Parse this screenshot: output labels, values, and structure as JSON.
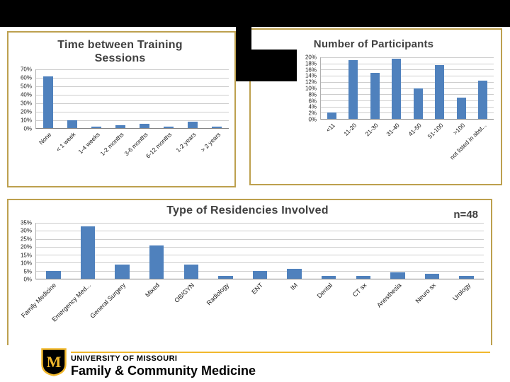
{
  "colors": {
    "bar": "#4f81bd",
    "box_border_gold": "#bda04e",
    "brand_gold": "#f1b82d",
    "header_black": "#000000",
    "title_gray": "#404040"
  },
  "chart_data": [
    {
      "type": "bar",
      "title": "Time between Training Sessions",
      "title_lines": [
        "Time between Training",
        "Sessions"
      ],
      "categories": [
        "None",
        "< 1 week",
        "1-4 weeks",
        "1-2 months",
        "3-6 months",
        "6-12 months",
        "1-2 years",
        "> 2 years"
      ],
      "values": [
        62,
        10,
        2,
        4,
        5,
        2,
        8,
        2
      ],
      "unit": "%",
      "xlabel": "",
      "ylabel": "",
      "ylim": [
        0,
        70
      ],
      "ytick_step": 10,
      "ytick_labels": [
        "70%",
        "60%",
        "50%",
        "40%",
        "30%",
        "20%",
        "10%",
        "0%"
      ],
      "grid": true,
      "legend": "none",
      "bar_color": "#4f81bd"
    },
    {
      "type": "bar",
      "title": "Number of Participants",
      "categories": [
        "<11",
        "11-20",
        "21-30",
        "31-40",
        "41-50",
        "51-100",
        ">100",
        "not listed in abst..."
      ],
      "values": [
        2,
        19,
        15,
        19.5,
        10,
        17.5,
        7,
        12.5
      ],
      "unit": "%",
      "xlabel": "",
      "ylabel": "",
      "ylim": [
        0,
        20
      ],
      "ytick_step": 2,
      "ytick_labels": [
        "20%",
        "18%",
        "16%",
        "14%",
        "12%",
        "10%",
        "8%",
        "6%",
        "4%",
        "2%",
        "0%"
      ],
      "grid": true,
      "legend": "none",
      "bar_color": "#4f81bd"
    },
    {
      "type": "bar",
      "title": "Type of Residencies Involved",
      "annotation": "n=48",
      "categories": [
        "Family Medicine",
        "Emergency Med...",
        "General Surgery",
        "Mixed",
        "OB/GYN",
        "Radiology",
        "ENT",
        "IM",
        "Dental",
        "CT sx",
        "Anesthesia",
        "Neuro sx",
        "Urology"
      ],
      "values": [
        5,
        33,
        9,
        21,
        9,
        2,
        5,
        6,
        2,
        2,
        4,
        3,
        2
      ],
      "unit": "%",
      "xlabel": "",
      "ylabel": "",
      "ylim": [
        0,
        35
      ],
      "ytick_step": 5,
      "ytick_labels": [
        "35%",
        "30%",
        "25%",
        "20%",
        "15%",
        "10%",
        "5%",
        "0%"
      ],
      "grid": true,
      "legend": "none",
      "bar_color": "#4f81bd"
    }
  ],
  "footer": {
    "university": "UNIVERSITY OF MISSOURI",
    "department": "Family & Community Medicine",
    "logo_letter": "M"
  }
}
